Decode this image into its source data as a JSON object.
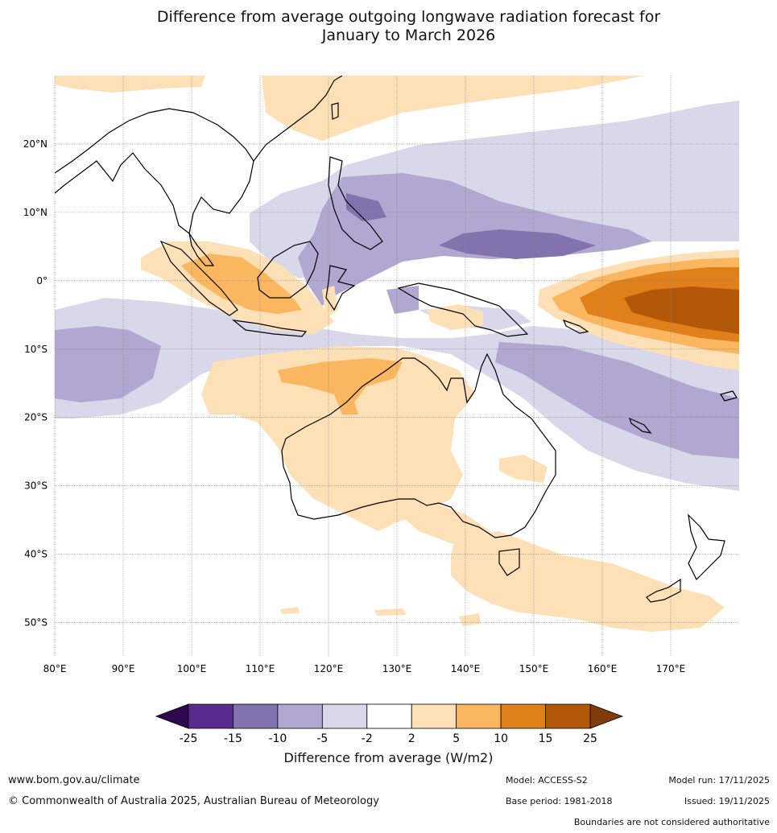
{
  "title": {
    "line1": "Difference from average outgoing longwave radiation forecast for",
    "line2": "January to March 2026"
  },
  "axes": {
    "lat_labels": [
      "20°N",
      "10°N",
      "0°",
      "10°S",
      "20°S",
      "30°S",
      "40°S",
      "50°S"
    ],
    "lat_values": [
      20,
      10,
      0,
      -10,
      -20,
      -30,
      -40,
      -50
    ],
    "lon_labels": [
      "80°E",
      "90°E",
      "100°E",
      "110°E",
      "120°E",
      "130°E",
      "140°E",
      "150°E",
      "160°E",
      "170°E"
    ],
    "lon_values": [
      80,
      90,
      100,
      110,
      120,
      130,
      140,
      150,
      160,
      170
    ],
    "lon_range": [
      80,
      180
    ],
    "lat_range": [
      -55,
      30
    ]
  },
  "colorbar": {
    "tick_labels": [
      "-25",
      "-15",
      "-10",
      "-5",
      "-2",
      "2",
      "5",
      "10",
      "15",
      "25"
    ],
    "colors": [
      "#5a2b8e",
      "#8272ae",
      "#b0a8d1",
      "#d8d8ea",
      "#ffffff",
      "#fde0b6",
      "#fbb660",
      "#e0801a",
      "#b35808"
    ],
    "under_color": "#2d0a4e",
    "over_color": "#7f3b08",
    "label": "Difference from average (W/m2)"
  },
  "footer": {
    "website": "www.bom.gov.au/climate",
    "copyright": "© Commonwealth of Australia 2025, Australian Bureau of Meteorology",
    "model": "Model: ACCESS-S2",
    "base_period": "Base period: 1981-2018",
    "model_run": "Model run: 17/11/2025",
    "issued": "Issued: 19/11/2025",
    "disclaimer": "Boundaries are not considered authoritative"
  }
}
